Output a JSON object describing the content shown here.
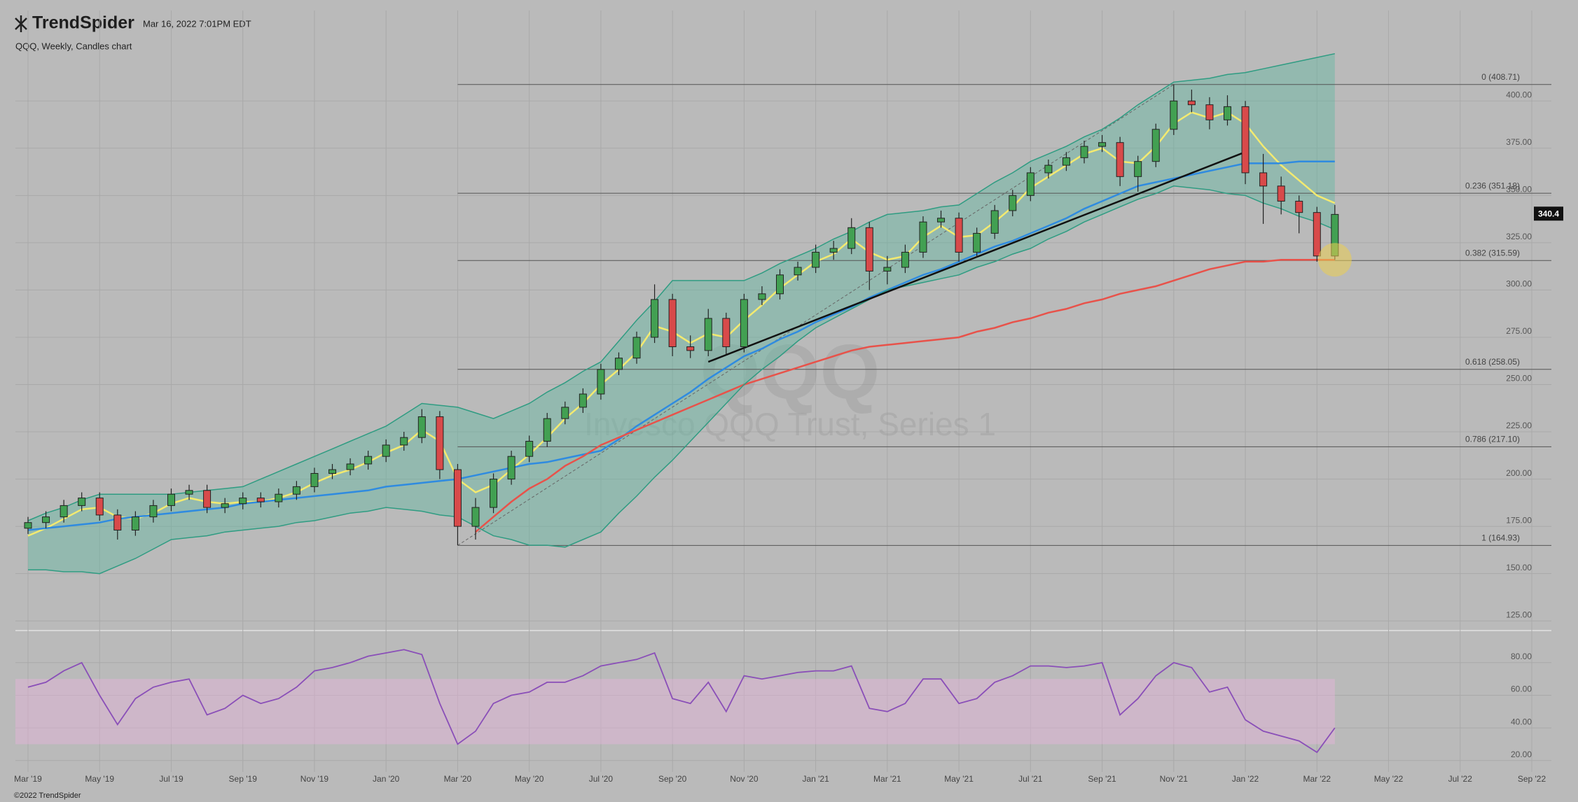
{
  "header": {
    "logo": "TrendSpider",
    "timestamp": "Mar 16, 2022 7:01PM EDT",
    "subtitle": "QQQ, Weekly, Candles chart",
    "footer": "©2022 TrendSpider"
  },
  "chart_data": [
    {
      "type": "candlestick",
      "categories": [
        "Mar '19",
        null,
        null,
        null,
        "May '19",
        null,
        null,
        null,
        "Jul '19",
        null,
        null,
        null,
        "Sep '19",
        null,
        null,
        null,
        "Nov '19",
        null,
        null,
        null,
        "Jan '20",
        null,
        null,
        null,
        "Mar '20",
        null,
        null,
        null,
        "May '20",
        null,
        null,
        null,
        "Jul '20",
        null,
        null,
        null,
        "Sep '20",
        null,
        null,
        null,
        "Nov '20",
        null,
        null,
        null,
        "Jan '21",
        null,
        null,
        null,
        "Mar '21",
        null,
        null,
        null,
        "May '21",
        null,
        null,
        null,
        "Jul '21",
        null,
        null,
        null,
        "Sep '21",
        null,
        null,
        null,
        "Nov '21",
        null,
        null,
        null,
        "Jan '22",
        null,
        null,
        null,
        "Mar '22",
        null,
        null,
        null,
        "May '22",
        null,
        null,
        null,
        "Jul '22",
        null,
        null,
        null,
        "Sep '22"
      ],
      "open": [
        174,
        177,
        180,
        186,
        190,
        181,
        173,
        180,
        186,
        192,
        194,
        185,
        187,
        190,
        188,
        192,
        196,
        203,
        205,
        208,
        212,
        218,
        222,
        233,
        205,
        175,
        185,
        200,
        212,
        220,
        232,
        238,
        245,
        258,
        264,
        275,
        295,
        270,
        268,
        285,
        270,
        295,
        298,
        308,
        312,
        320,
        322,
        333,
        310,
        312,
        320,
        336,
        338,
        320,
        330,
        342,
        350,
        362,
        366,
        370,
        376,
        378,
        360,
        368,
        385,
        400,
        398,
        390,
        397,
        362,
        355,
        347,
        341,
        318,
        null,
        null,
        null,
        null,
        null,
        null,
        null,
        null,
        null,
        null,
        null
      ],
      "high": [
        180,
        183,
        189,
        193,
        193,
        184,
        183,
        189,
        195,
        197,
        197,
        190,
        193,
        193,
        195,
        199,
        206,
        208,
        211,
        215,
        221,
        225,
        237,
        236,
        208,
        190,
        203,
        215,
        223,
        235,
        241,
        248,
        261,
        267,
        278,
        303,
        298,
        276,
        290,
        288,
        298,
        302,
        311,
        315,
        324,
        326,
        338,
        336,
        318,
        324,
        339,
        342,
        341,
        333,
        345,
        353,
        365,
        369,
        373,
        379,
        382,
        381,
        371,
        388,
        408.71,
        406,
        402,
        403,
        400,
        372,
        360,
        350,
        344,
        345,
        null,
        null,
        null,
        null,
        null,
        null,
        null,
        null,
        null,
        null,
        null
      ],
      "low": [
        171,
        174,
        177,
        183,
        178,
        168,
        170,
        177,
        183,
        189,
        182,
        182,
        184,
        185,
        185,
        189,
        193,
        200,
        202,
        205,
        209,
        215,
        219,
        200,
        165,
        168,
        182,
        197,
        209,
        217,
        229,
        235,
        242,
        255,
        261,
        272,
        265,
        264,
        265,
        266,
        267,
        292,
        295,
        305,
        309,
        316,
        319,
        300,
        303,
        309,
        317,
        333,
        315,
        317,
        327,
        339,
        347,
        359,
        363,
        367,
        373,
        355,
        352,
        365,
        382,
        394,
        385,
        387,
        356,
        335,
        340,
        330,
        315,
        316,
        null,
        null,
        null,
        null,
        null,
        null,
        null,
        null,
        null,
        null,
        null
      ],
      "close": [
        177,
        180,
        186,
        190,
        181,
        173,
        180,
        186,
        192,
        194,
        185,
        187,
        190,
        188,
        192,
        196,
        203,
        205,
        208,
        212,
        218,
        222,
        233,
        205,
        175,
        185,
        200,
        212,
        220,
        232,
        238,
        245,
        258,
        264,
        275,
        295,
        270,
        268,
        285,
        270,
        295,
        298,
        308,
        312,
        320,
        322,
        333,
        310,
        312,
        320,
        336,
        338,
        320,
        330,
        342,
        350,
        362,
        366,
        370,
        376,
        378,
        360,
        368,
        385,
        400,
        398,
        390,
        397,
        362,
        355,
        347,
        341,
        318,
        340,
        null,
        null,
        null,
        null,
        null,
        null,
        null,
        null,
        null,
        null,
        null
      ],
      "up_color": "#42a052",
      "down_color": "#d84a4a",
      "overlays": [
        {
          "color": "#f3ea70",
          "values": [
            170,
            174,
            179,
            184,
            185,
            180,
            179,
            182,
            187,
            190,
            188,
            187,
            188,
            188,
            190,
            193,
            198,
            202,
            205,
            209,
            214,
            218,
            226,
            220,
            200,
            193,
            197,
            205,
            213,
            222,
            232,
            240,
            250,
            258,
            267,
            281,
            278,
            272,
            277,
            275,
            284,
            292,
            301,
            308,
            315,
            319,
            327,
            320,
            316,
            318,
            328,
            334,
            328,
            329,
            336,
            344,
            354,
            360,
            366,
            372,
            375,
            368,
            367,
            376,
            388,
            394,
            391,
            394,
            388,
            376,
            366,
            358,
            350,
            346,
            null,
            null,
            null,
            null,
            null,
            null,
            null,
            null,
            null,
            null,
            null
          ]
        },
        {
          "color": "#2f8be0",
          "values": [
            173,
            174,
            175,
            176,
            177,
            179,
            180,
            181,
            182,
            183,
            184,
            185,
            187,
            188,
            189,
            190,
            191,
            192,
            193,
            194,
            196,
            197,
            198,
            199,
            200,
            202,
            204,
            206,
            208,
            209,
            211,
            213,
            215,
            221,
            228,
            234,
            240,
            246,
            253,
            259,
            265,
            269,
            274,
            278,
            283,
            287,
            291,
            296,
            300,
            304,
            308,
            311,
            315,
            319,
            323,
            326,
            330,
            334,
            338,
            343,
            347,
            351,
            355,
            357,
            359,
            361,
            363,
            365,
            367,
            367,
            367,
            368,
            368,
            368,
            null,
            null,
            null,
            null,
            null,
            null,
            null,
            null,
            null,
            null,
            null
          ]
        },
        {
          "color": "#e8524a",
          "values": [
            null,
            null,
            null,
            null,
            null,
            null,
            null,
            null,
            null,
            null,
            null,
            null,
            null,
            null,
            null,
            null,
            null,
            null,
            null,
            null,
            null,
            null,
            null,
            null,
            null,
            172,
            180,
            188,
            195,
            200,
            207,
            212,
            218,
            222,
            226,
            230,
            234,
            238,
            242,
            246,
            250,
            253,
            256,
            259,
            262,
            265,
            268,
            270,
            271,
            272,
            273,
            274,
            275,
            278,
            280,
            283,
            285,
            288,
            290,
            293,
            295,
            298,
            300,
            302,
            305,
            308,
            311,
            313,
            315,
            315,
            316,
            316,
            316,
            316,
            null,
            null,
            null,
            null,
            null,
            null,
            null,
            null,
            null,
            null,
            null
          ]
        },
        {
          "color": "#2f9c82",
          "values": [
            178,
            182,
            185,
            189,
            192,
            192,
            192,
            192,
            192,
            193,
            194,
            195,
            196,
            200,
            204,
            208,
            212,
            216,
            220,
            224,
            228,
            234,
            240,
            239,
            238,
            235,
            232,
            236,
            240,
            246,
            251,
            257,
            262,
            273,
            284,
            294,
            305,
            305,
            305,
            305,
            305,
            309,
            314,
            318,
            322,
            327,
            331,
            336,
            340,
            341,
            342,
            344,
            345,
            351,
            357,
            362,
            368,
            372,
            376,
            381,
            385,
            391,
            398,
            404,
            410,
            411,
            412,
            414,
            415,
            417,
            419,
            421,
            423,
            425,
            null,
            null,
            null,
            null,
            null,
            null,
            null,
            null,
            null,
            null,
            null
          ]
        },
        {
          "color": "#2f9c82",
          "values": [
            152,
            152,
            151,
            151,
            150,
            154,
            158,
            163,
            168,
            169,
            170,
            172,
            173,
            174,
            175,
            177,
            178,
            180,
            182,
            183,
            185,
            184,
            183,
            181,
            180,
            175,
            170,
            168,
            165,
            165,
            164,
            168,
            172,
            182,
            191,
            201,
            210,
            220,
            230,
            240,
            250,
            258,
            265,
            273,
            280,
            285,
            290,
            295,
            300,
            302,
            304,
            306,
            308,
            312,
            315,
            319,
            322,
            327,
            331,
            336,
            340,
            344,
            348,
            351,
            355,
            354,
            353,
            351,
            350,
            346,
            343,
            339,
            336,
            332,
            null,
            null,
            null,
            null,
            null,
            null,
            null,
            null,
            null,
            null,
            null
          ]
        }
      ],
      "band_fill": "#5ab9a0",
      "trendline": [
        262,
        373
      ],
      "fib_levels": [
        {
          "value": 408.71,
          "label": "0 (408.71)"
        },
        {
          "value": 351.18,
          "label": "0.236 (351.18)"
        },
        {
          "value": 315.59,
          "label": "0.382 (315.59)"
        },
        {
          "value": 258.05,
          "label": "0.618 (258.05)"
        },
        {
          "value": 217.1,
          "label": "0.786 (217.10)"
        },
        {
          "value": 164.93,
          "label": "1 (164.93)"
        }
      ],
      "last_price": 340.4,
      "watermark_symbol": "QQQ",
      "watermark_name": "Invesco QQQ Trust, Series 1",
      "ylim": [
        121,
        446
      ],
      "yticks": [
        {
          "value": 125,
          "label": "125.00"
        },
        {
          "value": 150,
          "label": "150.00"
        },
        {
          "value": 175,
          "label": "175.00"
        },
        {
          "value": 200,
          "label": "200.00"
        },
        {
          "value": 225,
          "label": "225.00"
        },
        {
          "value": 250,
          "label": "250.00"
        },
        {
          "value": 275,
          "label": "275.00"
        },
        {
          "value": 300,
          "label": "300.00"
        },
        {
          "value": 325,
          "label": "325.00"
        },
        {
          "value": 350,
          "label": "350.00"
        },
        {
          "value": 375,
          "label": "375.00"
        },
        {
          "value": 400,
          "label": "400.00"
        }
      ],
      "grid": true
    },
    {
      "type": "line",
      "color": "#8a4fb8",
      "values": [
        65,
        68,
        75,
        80,
        60,
        42,
        58,
        65,
        68,
        70,
        48,
        52,
        60,
        55,
        58,
        65,
        75,
        77,
        80,
        84,
        86,
        88,
        85,
        55,
        30,
        38,
        55,
        60,
        62,
        68,
        68,
        72,
        78,
        80,
        82,
        86,
        58,
        55,
        68,
        50,
        72,
        70,
        72,
        74,
        75,
        75,
        78,
        52,
        50,
        55,
        70,
        70,
        55,
        58,
        68,
        72,
        78,
        78,
        77,
        78,
        80,
        48,
        58,
        72,
        80,
        77,
        62,
        65,
        45,
        38,
        35,
        32,
        25,
        40,
        null,
        null,
        null,
        null,
        null,
        null,
        null,
        null,
        null,
        null,
        null
      ],
      "band": [
        30,
        70
      ],
      "band_color": "#e6b4dc",
      "ylim": [
        13,
        98
      ],
      "yticks": [
        {
          "value": 20,
          "label": "20.00"
        },
        {
          "value": 40,
          "label": "40.00"
        },
        {
          "value": 60,
          "label": "60.00"
        },
        {
          "value": 80,
          "label": "80.00"
        }
      ],
      "grid": true
    }
  ]
}
